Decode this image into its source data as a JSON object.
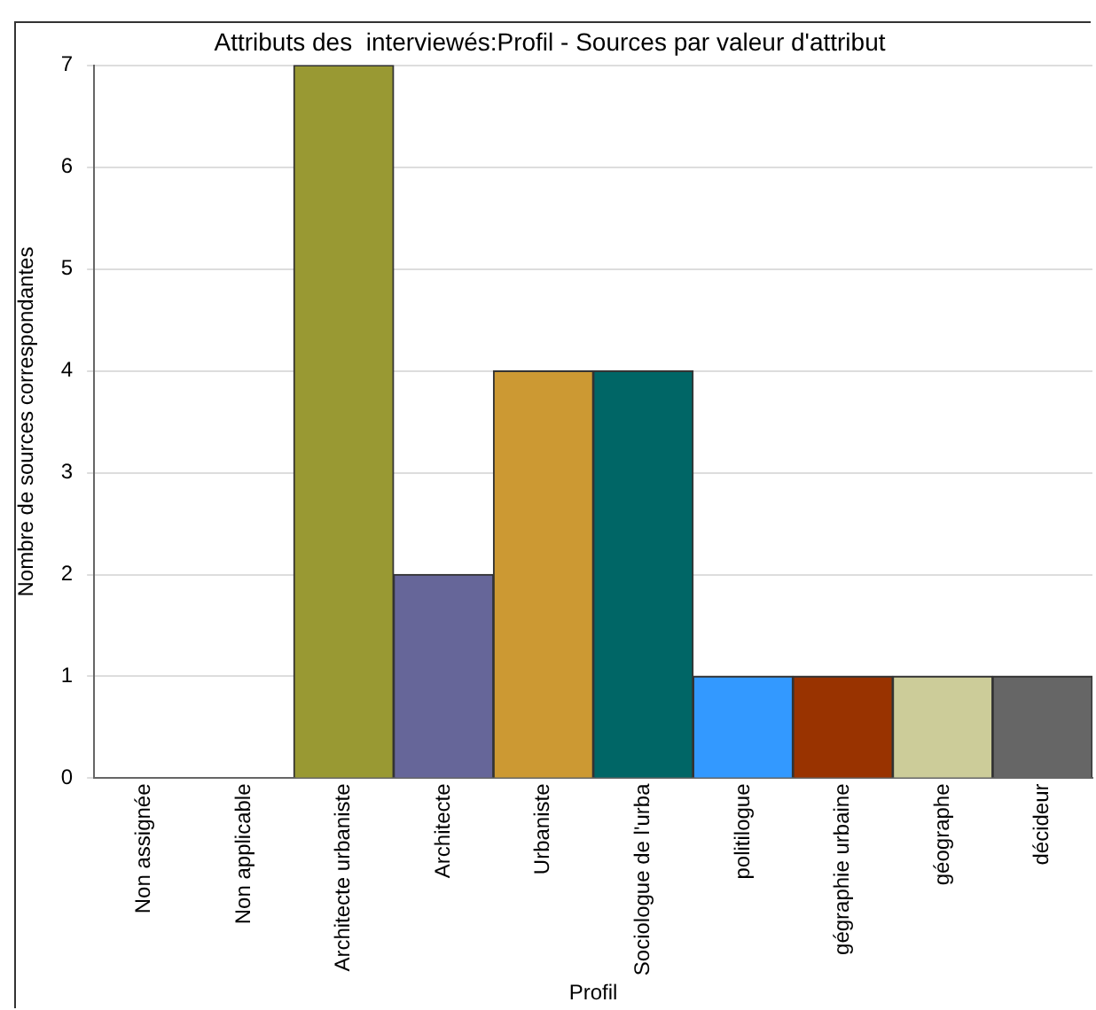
{
  "chart_data": {
    "type": "bar",
    "title": "Attributs des  interviewés:Profil - Sources par valeur d'attribut",
    "xlabel": "Profil",
    "ylabel": "Nombre de sources correspondantes",
    "categories": [
      "Non assignée",
      "Non applicable",
      "Architecte urbaniste",
      "Architecte",
      "Urbaniste",
      "Sociologue de l'urba",
      "politilogue",
      "gégraphie urbaine",
      "géographe",
      "décideur"
    ],
    "values": [
      0,
      0,
      7,
      2,
      4,
      4,
      1,
      1,
      1,
      1
    ],
    "colors": [
      "#999933",
      "#999933",
      "#999933",
      "#666699",
      "#cc9933",
      "#006666",
      "#3399ff",
      "#993300",
      "#cccc99",
      "#666666"
    ],
    "ylim": [
      0,
      7
    ],
    "yticks": [
      0,
      1,
      2,
      3,
      4,
      5,
      6,
      7
    ],
    "grid": "y",
    "legend": false
  }
}
